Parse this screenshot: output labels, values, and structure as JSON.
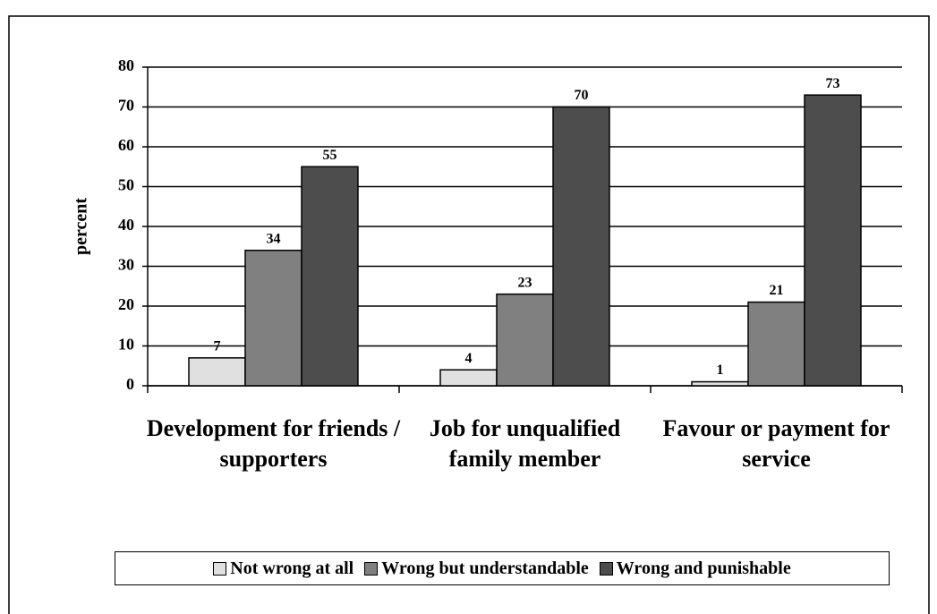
{
  "chart_data": {
    "type": "bar",
    "y_label": "percent",
    "categories": [
      "Development for friends / supporters",
      "Job for unqualified family member",
      "Favour or payment for service"
    ],
    "series": [
      {
        "name": "Not wrong at all",
        "color": "#e0e0e0",
        "values": [
          7,
          4,
          1
        ]
      },
      {
        "name": "Wrong but understandable",
        "color": "#808080",
        "values": [
          34,
          23,
          21
        ]
      },
      {
        "name": "Wrong and punishable",
        "color": "#4d4d4d",
        "values": [
          55,
          70,
          73
        ]
      }
    ],
    "ylim": [
      0,
      80
    ],
    "yticks": [
      0,
      10,
      20,
      30,
      40,
      50,
      60,
      70,
      80
    ],
    "grid": true,
    "legend": "bottom"
  }
}
